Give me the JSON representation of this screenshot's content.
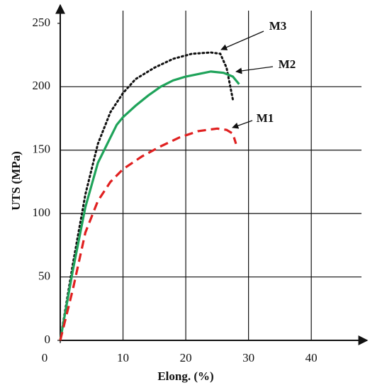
{
  "chart_data": {
    "type": "line",
    "xlabel": "Elong. (%)",
    "ylabel": "UTS (MPa)",
    "xlim": [
      0,
      48
    ],
    "xticks": [
      0,
      10,
      20,
      30,
      40
    ],
    "ylim": [
      0,
      260
    ],
    "yticks": [
      0,
      50,
      100,
      150,
      200,
      250
    ],
    "grid": true,
    "series": [
      {
        "name": "M3",
        "color": "#111111",
        "style": "dotted",
        "x": [
          0,
          2,
          4,
          6,
          8,
          10,
          12,
          15,
          18,
          21,
          24,
          25.5,
          26.5,
          27.5
        ],
        "values": [
          0,
          60,
          115,
          155,
          180,
          195,
          206,
          215,
          222,
          226,
          227,
          226,
          215,
          190
        ]
      },
      {
        "name": "M2",
        "color": "#1fa35a",
        "style": "solid",
        "x": [
          0,
          2,
          4,
          6,
          8,
          9,
          10,
          12,
          14,
          16,
          18,
          20,
          22,
          24,
          26,
          27.5,
          28.5
        ],
        "values": [
          0,
          55,
          105,
          140,
          160,
          170,
          176,
          185,
          193,
          200,
          205,
          208,
          210,
          212,
          211,
          208,
          202
        ]
      },
      {
        "name": "M1",
        "color": "#e02020",
        "style": "dashed",
        "x": [
          0,
          2,
          4,
          6,
          8,
          10,
          13,
          16,
          19,
          22,
          25,
          26.5,
          27.5,
          28
        ],
        "values": [
          0,
          40,
          85,
          110,
          125,
          135,
          145,
          153,
          160,
          165,
          167,
          166,
          163,
          155
        ]
      }
    ]
  }
}
